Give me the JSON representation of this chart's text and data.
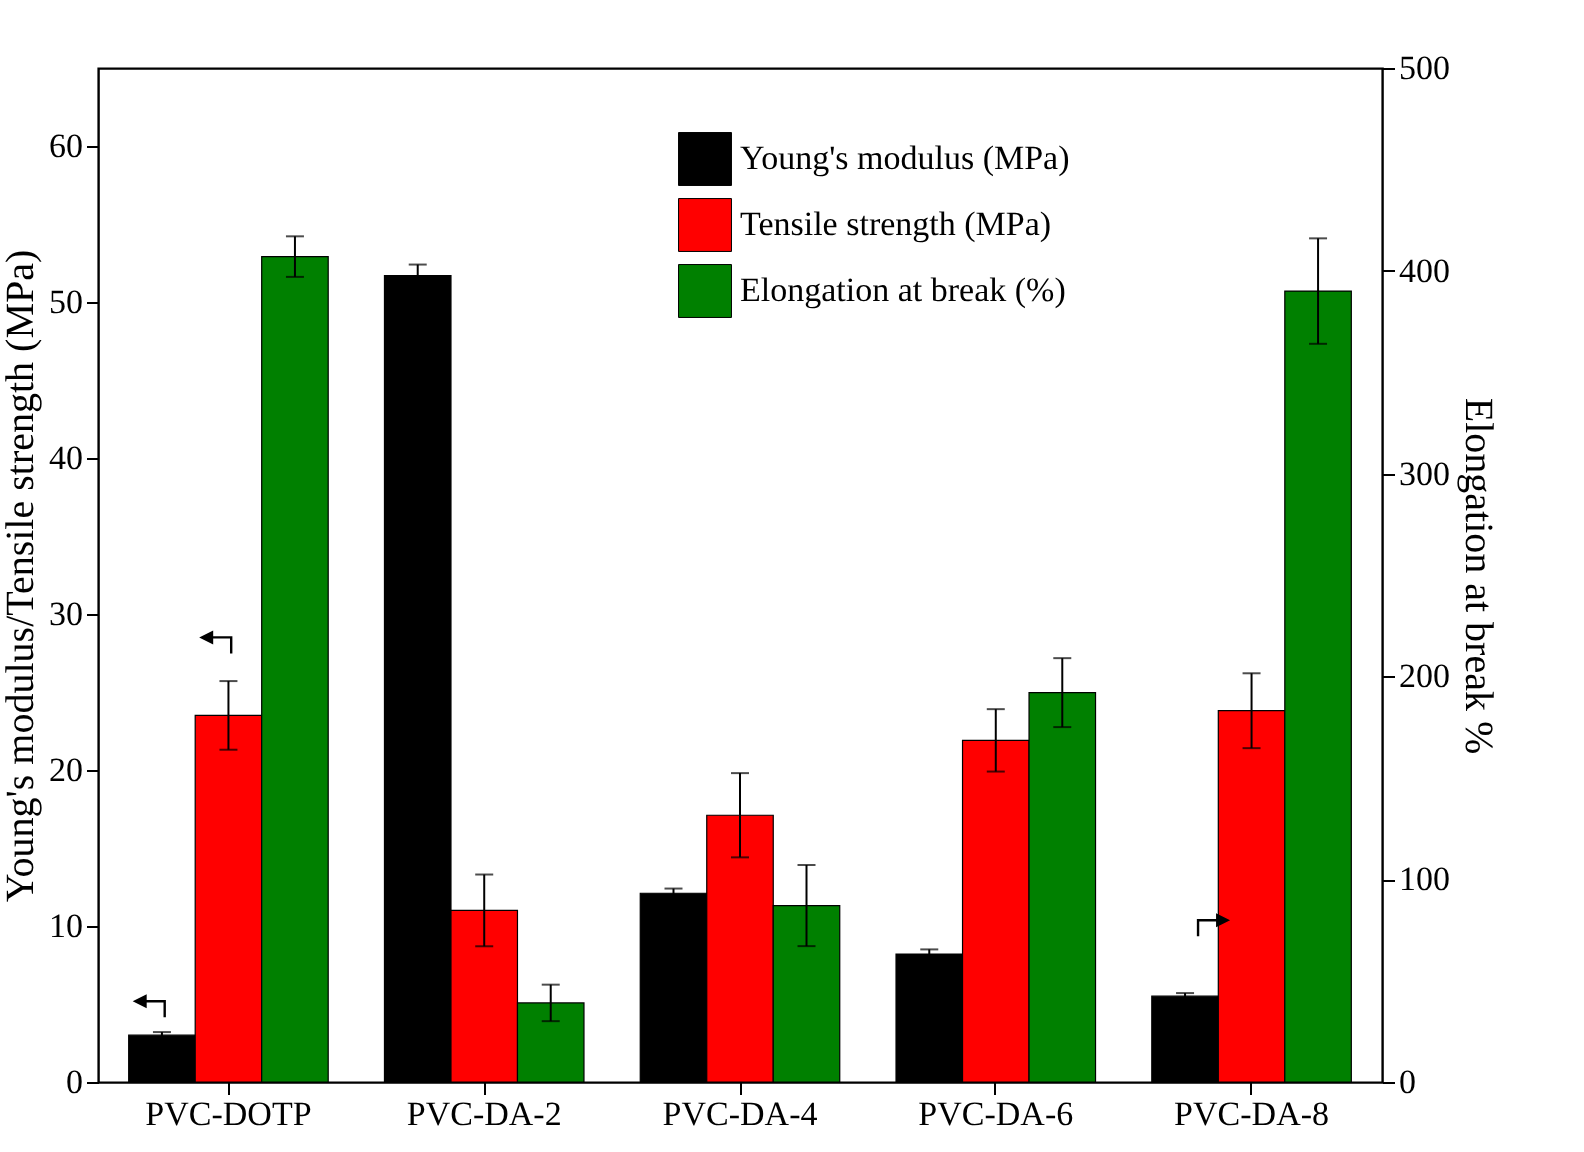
{
  "chart_data": {
    "type": "bar",
    "ylabel": "Young's modulus/Tensile strength (MPa)",
    "y2label": "Elongation at break %",
    "categories": [
      "PVC-DOTP",
      "PVC-DA-2",
      "PVC-DA-4",
      "PVC-DA-6",
      "PVC-DA-8"
    ],
    "series": [
      {
        "name": "Young's modulus (MPa)",
        "color": "#000000",
        "values": [
          3.0,
          51.7,
          12.1,
          8.2,
          5.5
        ],
        "errors": [
          0.2,
          0.7,
          0.3,
          0.3,
          0.2
        ]
      },
      {
        "name": "Tensile strength (MPa)",
        "color": "#ff0000",
        "values": [
          23.5,
          11.0,
          17.1,
          21.9,
          23.8
        ],
        "errors": [
          2.2,
          2.3,
          2.7,
          2.0,
          2.4
        ]
      },
      {
        "name": "Elongation at break (%)",
        "color": "#008000",
        "values": [
          407,
          39,
          87,
          192,
          390
        ],
        "errors": [
          10,
          9,
          20,
          17,
          26
        ],
        "axis": "y2"
      }
    ],
    "ylim": [
      0,
      65
    ],
    "yticks": [
      0,
      10,
      20,
      30,
      40,
      50,
      60
    ],
    "y2lim": [
      0,
      500
    ],
    "y2ticks": [
      0,
      100,
      200,
      300,
      400,
      500
    ],
    "legend": "top right",
    "grid": false
  }
}
